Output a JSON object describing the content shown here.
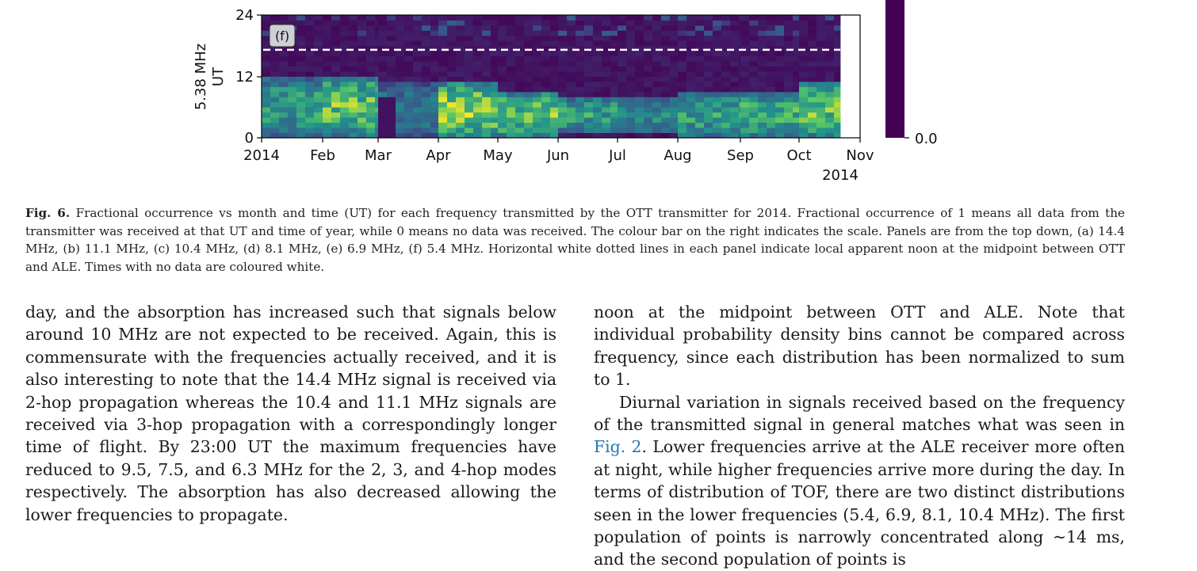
{
  "figure": {
    "panel_label": "(f)",
    "ylabel_freq": "5.38 MHz",
    "ylabel_ut": "UT",
    "colorbar_label": "0.0",
    "year_label": "2014",
    "colors": {
      "low": "#440154",
      "mid": "#21918c",
      "high": "#fde725",
      "noon_line": "#ffffff"
    }
  },
  "chart_data": {
    "type": "heatmap",
    "title": "",
    "xlabel": "",
    "ylabel": "5.38 MHz UT",
    "x_tick_labels": [
      "2014",
      "Feb",
      "Mar",
      "Apr",
      "May",
      "Jun",
      "Jul",
      "Aug",
      "Sep",
      "Oct",
      "Nov"
    ],
    "y_tick_labels": [
      "0",
      "12",
      "24"
    ],
    "ylim": [
      0,
      24
    ],
    "colorbar": {
      "min_label": "0.0",
      "colormap": "viridis"
    },
    "noon_line_ut": 17.2,
    "no_data_from": "Nov",
    "activity_by_month": [
      {
        "month": "Jan",
        "peak_occurrence": 0.7,
        "ut_range": [
          0,
          12
        ]
      },
      {
        "month": "Feb",
        "peak_occurrence": 0.9,
        "ut_range": [
          0,
          12
        ]
      },
      {
        "month": "Mar",
        "peak_occurrence": 0.5,
        "ut_range": [
          0,
          11
        ]
      },
      {
        "month": "Apr",
        "peak_occurrence": 1.0,
        "ut_range": [
          0,
          11
        ]
      },
      {
        "month": "May",
        "peak_occurrence": 0.9,
        "ut_range": [
          0,
          9
        ]
      },
      {
        "month": "Jun",
        "peak_occurrence": 0.7,
        "ut_range": [
          1,
          8
        ]
      },
      {
        "month": "Jul",
        "peak_occurrence": 0.6,
        "ut_range": [
          1,
          8
        ]
      },
      {
        "month": "Aug",
        "peak_occurrence": 0.7,
        "ut_range": [
          0,
          9
        ]
      },
      {
        "month": "Sep",
        "peak_occurrence": 0.8,
        "ut_range": [
          0,
          9
        ]
      },
      {
        "month": "Oct",
        "peak_occurrence": 0.9,
        "ut_range": [
          0,
          11
        ]
      }
    ]
  },
  "caption": {
    "label": "Fig. 6.",
    "text": "Fractional occurrence vs month and time (UT) for each frequency transmitted by the OTT transmitter for 2014. Fractional occurrence of 1 means all data from the transmitter was received at that UT and time of year, while 0 means no data was received. The colour bar on the right indicates the scale. Panels are from the top down, (a) 14.4 MHz, (b) 11.1 MHz, (c) 10.4 MHz, (d) 8.1 MHz, (e) 6.9 MHz, (f) 5.4 MHz. Horizontal white dotted lines in each panel indicate local apparent noon at the midpoint between OTT and ALE. Times with no data are coloured white."
  },
  "body": {
    "left_paragraph": "day, and the absorption has increased such that signals below around 10 MHz are not expected to be received. Again, this is commensurate with the frequencies actually received, and it is also interesting to note that the 14.4 MHz signal is received via 2-hop propagation whereas the 10.4 and 11.1 MHz signals are received via 3-hop propagation with a correspondingly longer time of flight. By 23:00 UT the maximum frequencies have reduced to 9.5, 7.5, and 6.3 MHz for the 2, 3, and 4-hop modes respectively. The absorption has also decreased allowing the lower frequencies to propagate.",
    "right_p1": "noon at the midpoint between OTT and ALE. Note that individual probability density bins cannot be compared across frequency, since each distribution has been normalized to sum to 1.",
    "right_p2_before": "Diurnal variation in signals received based on the frequency of the transmitted signal in general matches what was seen in ",
    "right_p2_link": "Fig. 2",
    "right_p2_after": ". Lower frequencies arrive at the ALE receiver more often at night, while higher frequencies arrive more during the day. In terms of distribution of TOF, there are two distinct distributions seen in the lower frequencies (5.4, 6.9, 8.1, 10.4 MHz). The first population of points is narrowly concentrated along ~14 ms, and the second population of points is"
  }
}
